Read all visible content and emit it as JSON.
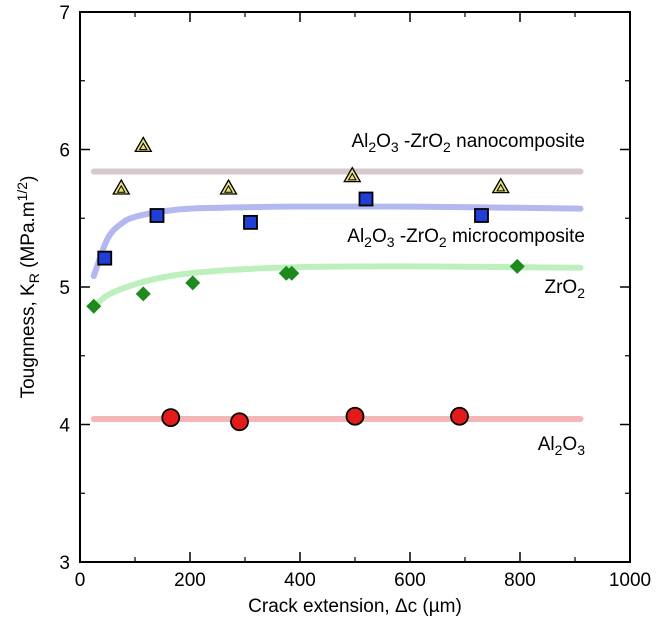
{
  "chart_data": {
    "type": "scatter",
    "xlabel": "Crack extension, Δc (µm)",
    "ylabel": "Tougnness, K_R (MPa.m^1/2)",
    "xlim": [
      0,
      1000
    ],
    "ylim": [
      3,
      7
    ],
    "xticks": [
      "0",
      "200",
      "400",
      "600",
      "800",
      "1000"
    ],
    "yticks": [
      "3",
      "4",
      "5",
      "6",
      "7"
    ],
    "grid": false,
    "series": [
      {
        "name": "Al₂O₃ -ZrO₂ nanocomposite",
        "marker": "triangle",
        "color": "#e6e07a",
        "line_color": "#d6c8cc",
        "x": [
          75,
          115,
          270,
          495,
          765
        ],
        "y": [
          5.72,
          6.03,
          5.72,
          5.81,
          5.73
        ],
        "fit": {
          "x": [
            25,
            910
          ],
          "y": [
            5.84,
            5.84
          ]
        }
      },
      {
        "name": "Al₂O₃ -ZrO₂ microcomposite",
        "marker": "square",
        "color": "#1f3fd6",
        "line_color": "#b3b8ef",
        "x": [
          45,
          140,
          310,
          520,
          730
        ],
        "y": [
          5.21,
          5.52,
          5.47,
          5.64,
          5.52
        ],
        "fit": {
          "x": [
            25,
            50,
            75,
            100,
            150,
            200,
            300,
            400,
            600,
            910
          ],
          "y": [
            5.08,
            5.35,
            5.46,
            5.51,
            5.55,
            5.57,
            5.58,
            5.585,
            5.585,
            5.57
          ]
        }
      },
      {
        "name": "ZrO₂",
        "marker": "diamond",
        "color": "#1e8a1e",
        "line_color": "#bdf0bd",
        "x": [
          25,
          115,
          205,
          375,
          385,
          795
        ],
        "y": [
          4.86,
          4.95,
          5.03,
          5.1,
          5.1,
          5.15
        ],
        "fit": {
          "x": [
            25,
            50,
            100,
            150,
            200,
            300,
            400,
            600,
            910
          ],
          "y": [
            4.85,
            4.94,
            5.02,
            5.07,
            5.1,
            5.13,
            5.145,
            5.15,
            5.14
          ]
        }
      },
      {
        "name": "Al₂O₃",
        "marker": "circle",
        "color": "#e41b1b",
        "line_color": "#f4b7b7",
        "x": [
          165,
          290,
          500,
          690
        ],
        "y": [
          4.05,
          4.02,
          4.06,
          4.06
        ],
        "fit": {
          "x": [
            25,
            910
          ],
          "y": [
            4.04,
            4.04
          ]
        }
      }
    ]
  }
}
